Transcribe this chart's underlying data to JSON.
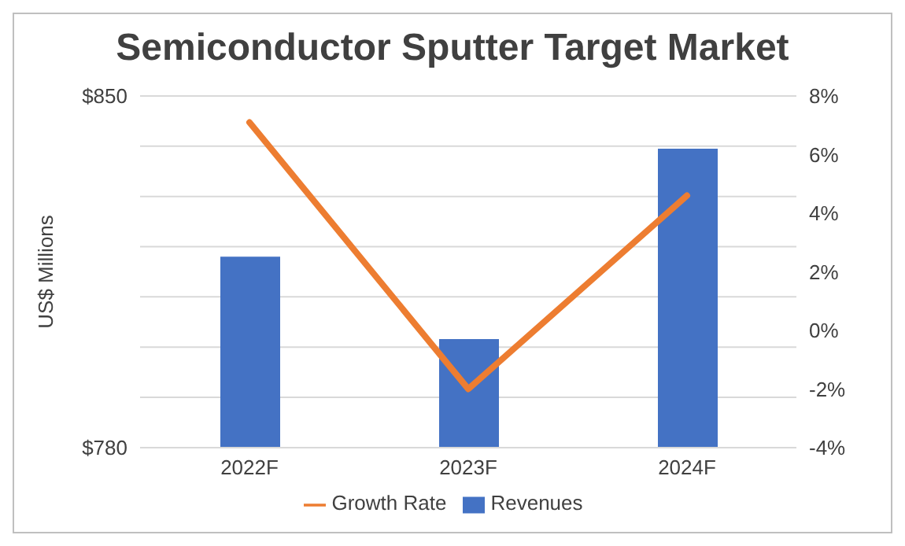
{
  "chart_data": {
    "type": "bar",
    "title": "Semiconductor Sputter Target Market",
    "ylabel": "US$ Millions",
    "categories": [
      "2022F",
      "2023F",
      "2024F"
    ],
    "series": [
      {
        "name": "Revenues",
        "color": "#4472c4",
        "values": [
          818,
          801.6,
          839.5
        ]
      },
      {
        "name": "Growth Rate",
        "type": "line",
        "axis": "y2",
        "color": "#ed7d31",
        "values": [
          7.1,
          -2,
          4.6
        ]
      }
    ],
    "ylim": [
      780,
      850
    ],
    "yticks": [
      {
        "value": 780,
        "label": "$780"
      },
      {
        "value": 790,
        "label": null
      },
      {
        "value": 800,
        "label": null
      },
      {
        "value": 810,
        "label": null
      },
      {
        "value": 820,
        "label": null
      },
      {
        "value": 830,
        "label": null
      },
      {
        "value": 840,
        "label": null
      },
      {
        "value": 850,
        "label": "$850"
      }
    ],
    "y2lim": [
      -4,
      8
    ],
    "y2ticks": [
      {
        "value": -4,
        "label": "-4%"
      },
      {
        "value": -2,
        "label": "-2%"
      },
      {
        "value": 0,
        "label": "0%"
      },
      {
        "value": 2,
        "label": "2%"
      },
      {
        "value": 4,
        "label": "4%"
      },
      {
        "value": 6,
        "label": "6%"
      },
      {
        "value": 8,
        "label": "8%"
      }
    ],
    "grid": "y",
    "legend": "bottom",
    "marker": "none",
    "line_style": "solid"
  }
}
